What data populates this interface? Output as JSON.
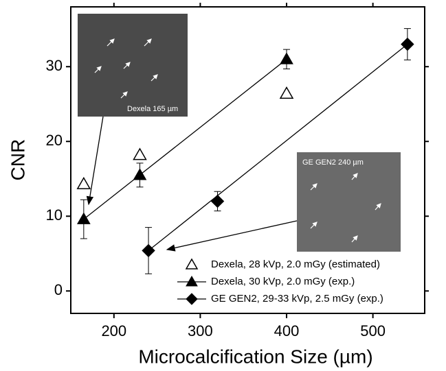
{
  "chart_data": {
    "type": "scatter",
    "x_label": "Microcalcification Size (µm)",
    "y_label": "CNR",
    "xlim": [
      150,
      560
    ],
    "ylim": [
      -3,
      38
    ],
    "xticks": [
      200,
      300,
      400,
      500
    ],
    "yticks": [
      0,
      10,
      20,
      30
    ],
    "series": [
      {
        "name": "Dexela, 28 kVp, 2.0 mGy (estimated)",
        "color": "#000000",
        "marker": "triangle-open",
        "line": false,
        "x": [
          165,
          230,
          400
        ],
        "values": [
          14.3,
          18.2,
          26.4
        ]
      },
      {
        "name": "Dexela, 30 kVp, 2.0 mGy (exp.)",
        "color": "#000000",
        "marker": "triangle",
        "line": true,
        "x": [
          165,
          230,
          400
        ],
        "values": [
          9.6,
          15.5,
          31.0
        ],
        "errors": [
          2.6,
          1.6,
          1.3
        ]
      },
      {
        "name": "GE GEN2, 29-33 kVp, 2.5 mGy (exp.)",
        "color": "#000000",
        "marker": "diamond",
        "line": true,
        "x": [
          240,
          320,
          540
        ],
        "values": [
          5.4,
          12.0,
          33.0
        ],
        "errors": [
          3.1,
          1.3,
          2.1
        ]
      }
    ],
    "insets": [
      {
        "label": "Dexela 165 µm"
      },
      {
        "label": "GE GEN2 240 µm"
      }
    ]
  }
}
